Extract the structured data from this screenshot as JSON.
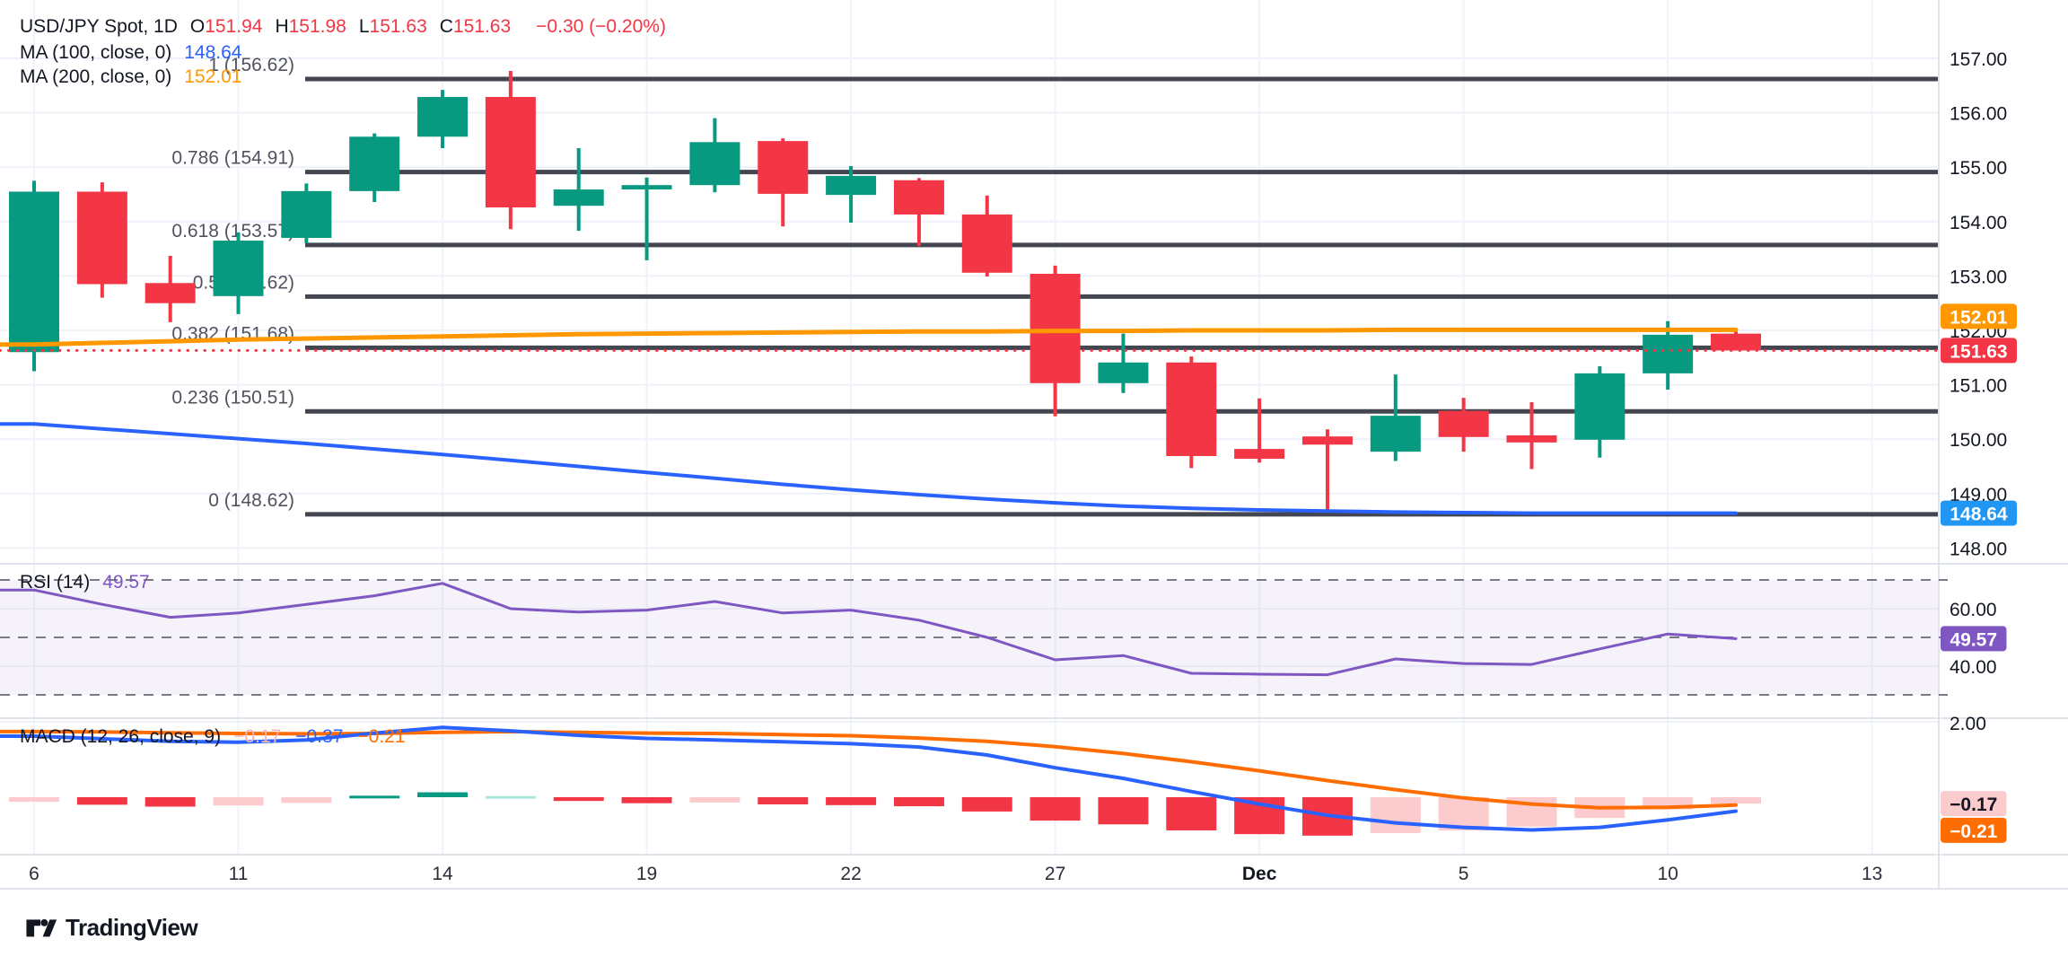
{
  "header": {
    "symbol": "USD/JPY Spot, 1D",
    "ohlc": [
      {
        "label": "O",
        "value": "151.94"
      },
      {
        "label": "H",
        "value": "151.98"
      },
      {
        "label": "L",
        "value": "151.63"
      },
      {
        "label": "C",
        "value": "151.63"
      }
    ],
    "change": "−0.30 (−0.20%)",
    "value_color": "#f23645",
    "ma_rows": [
      {
        "label": "MA (100, close, 0)",
        "value": "148.64",
        "color": "#2962ff"
      },
      {
        "label": "MA (200, close, 0)",
        "value": "152.01",
        "color": "#ff9800"
      }
    ]
  },
  "fib": {
    "levels": [
      {
        "label": "1 (156.62)",
        "price": 156.62
      },
      {
        "label": "0.786 (154.91)",
        "price": 154.91
      },
      {
        "label": "0.618 (153.57)",
        "price": 153.57
      },
      {
        "label": "0.5 (152.62)",
        "price": 152.62
      },
      {
        "label": "0.382 (151.68)",
        "price": 151.68
      },
      {
        "label": "0.236 (150.51)",
        "price": 150.51
      },
      {
        "label": "0 (148.62)",
        "price": 148.62
      }
    ]
  },
  "price_axis": {
    "ticks": [
      "157.00",
      "156.00",
      "155.00",
      "154.00",
      "153.00",
      "152.00",
      "151.00",
      "150.00",
      "149.00",
      "148.00"
    ],
    "tick_prices": [
      157,
      156,
      155,
      154,
      153,
      152,
      151,
      150,
      149,
      148
    ],
    "badges": [
      {
        "text": "152.01",
        "bg": "#ff9800",
        "fg": "#ffffff",
        "price": 152.01
      },
      {
        "text": "151.63",
        "bg": "#f23645",
        "fg": "#ffffff",
        "price": 151.63
      },
      {
        "text": "148.64",
        "bg": "#2196f3",
        "fg": "#ffffff",
        "price": 148.64
      }
    ]
  },
  "rsi_panel": {
    "label": "RSI (14)",
    "value": "49.57",
    "color": "#7e57c2",
    "ticks": [
      {
        "text": "60.00",
        "level": 60
      },
      {
        "text": "40.00",
        "level": 40
      }
    ],
    "badge": {
      "text": "49.57",
      "bg": "#7e57c2",
      "fg": "#ffffff",
      "level": 49.57
    },
    "bands": {
      "upper": 70,
      "middle": 50,
      "lower": 30
    }
  },
  "macd_panel": {
    "label": "MACD (12, 26, close, 9)",
    "values": [
      {
        "text": "−0.17",
        "color": "#f8b4ba"
      },
      {
        "text": "−0.37",
        "color": "#2962ff"
      },
      {
        "text": "−0.21",
        "color": "#ff6d00"
      }
    ],
    "tick": {
      "text": "2.00",
      "level": 2
    },
    "badges": [
      {
        "text": "−0.17",
        "bg": "#fccbcd",
        "fg": "#131722",
        "level": -0.17
      },
      {
        "text": "−0.21",
        "bg": "#ff6d00",
        "fg": "#ffffff",
        "level": -0.21
      }
    ]
  },
  "time_axis": {
    "labels": [
      {
        "text": "6",
        "k": 0,
        "bold": false
      },
      {
        "text": "11",
        "k": 3,
        "bold": false
      },
      {
        "text": "14",
        "k": 6,
        "bold": false
      },
      {
        "text": "19",
        "k": 9,
        "bold": false
      },
      {
        "text": "22",
        "k": 12,
        "bold": false
      },
      {
        "text": "27",
        "k": 15,
        "bold": false
      },
      {
        "text": "Dec",
        "k": 18,
        "bold": true
      },
      {
        "text": "5",
        "k": 21,
        "bold": false
      },
      {
        "text": "10",
        "k": 24,
        "bold": false
      },
      {
        "text": "13",
        "k": 27,
        "bold": false
      }
    ]
  },
  "watermark": {
    "text": "TradingView"
  },
  "colors": {
    "up": "#089981",
    "down": "#f23645",
    "ma100": "#2962ff",
    "ma200": "#ff9800",
    "macd_line": "#2962ff",
    "signal_line": "#ff6d00",
    "rsi_line": "#7e57c2",
    "fib_line": "#434651",
    "hist": {
      "red": "#f23645",
      "pink": "#fccbcd",
      "teal": "#089981",
      "tealLight": "#ace5dc"
    }
  },
  "chart_data": {
    "type": "candlestick",
    "title": "USD/JPY Spot",
    "timeframe": "1D",
    "ylim": [
      147.8,
      157.3
    ],
    "close_line": 151.63,
    "fib_levels": [
      156.62,
      154.91,
      153.57,
      152.62,
      151.68,
      150.51,
      148.62
    ],
    "candles": [
      {
        "date": "Nov 6",
        "o": 151.6,
        "h": 154.75,
        "l": 151.25,
        "c": 154.55
      },
      {
        "date": "Nov 7",
        "o": 154.55,
        "h": 154.72,
        "l": 152.6,
        "c": 152.85
      },
      {
        "date": "Nov 8",
        "o": 152.87,
        "h": 153.37,
        "l": 152.15,
        "c": 152.5
      },
      {
        "date": "Nov 11",
        "o": 152.63,
        "h": 153.8,
        "l": 152.3,
        "c": 153.65
      },
      {
        "date": "Nov 12",
        "o": 153.7,
        "h": 154.7,
        "l": 153.6,
        "c": 154.56
      },
      {
        "date": "Nov 13",
        "o": 154.56,
        "h": 155.62,
        "l": 154.36,
        "c": 155.56
      },
      {
        "date": "Nov 14",
        "o": 155.56,
        "h": 156.42,
        "l": 155.35,
        "c": 156.29
      },
      {
        "date": "Nov 15",
        "o": 156.29,
        "h": 156.77,
        "l": 153.86,
        "c": 154.26
      },
      {
        "date": "Nov 18",
        "o": 154.29,
        "h": 155.35,
        "l": 153.83,
        "c": 154.59
      },
      {
        "date": "Nov 19",
        "o": 154.59,
        "h": 154.81,
        "l": 153.29,
        "c": 154.67
      },
      {
        "date": "Nov 20",
        "o": 154.67,
        "h": 155.9,
        "l": 154.54,
        "c": 155.46
      },
      {
        "date": "Nov 21",
        "o": 155.48,
        "h": 155.53,
        "l": 153.91,
        "c": 154.51
      },
      {
        "date": "Nov 22",
        "o": 154.49,
        "h": 155.02,
        "l": 153.98,
        "c": 154.84
      },
      {
        "date": "Nov 25",
        "o": 154.76,
        "h": 154.8,
        "l": 153.55,
        "c": 154.13
      },
      {
        "date": "Nov 26",
        "o": 154.13,
        "h": 154.48,
        "l": 152.99,
        "c": 153.06
      },
      {
        "date": "Nov 27",
        "o": 153.04,
        "h": 153.19,
        "l": 150.42,
        "c": 151.03
      },
      {
        "date": "Nov 28",
        "o": 151.03,
        "h": 151.94,
        "l": 150.85,
        "c": 151.41
      },
      {
        "date": "Nov 29",
        "o": 151.41,
        "h": 151.52,
        "l": 149.47,
        "c": 149.69
      },
      {
        "date": "Dec 2",
        "o": 149.82,
        "h": 150.75,
        "l": 149.57,
        "c": 149.64
      },
      {
        "date": "Dec 3",
        "o": 150.05,
        "h": 150.18,
        "l": 148.65,
        "c": 149.9
      },
      {
        "date": "Dec 4",
        "o": 149.77,
        "h": 151.19,
        "l": 149.6,
        "c": 150.43
      },
      {
        "date": "Dec 5",
        "o": 150.52,
        "h": 150.76,
        "l": 149.77,
        "c": 150.04
      },
      {
        "date": "Dec 6",
        "o": 150.07,
        "h": 150.68,
        "l": 149.45,
        "c": 149.94
      },
      {
        "date": "Dec 9",
        "o": 149.99,
        "h": 151.34,
        "l": 149.66,
        "c": 151.21
      },
      {
        "date": "Dec 10",
        "o": 151.21,
        "h": 152.17,
        "l": 150.91,
        "c": 151.92
      },
      {
        "date": "Dec 11",
        "o": 151.94,
        "h": 151.98,
        "l": 151.63,
        "c": 151.63
      }
    ],
    "ma100": [
      150.28,
      150.19,
      150.1,
      150.01,
      149.92,
      149.82,
      149.72,
      149.61,
      149.5,
      149.39,
      149.28,
      149.17,
      149.07,
      148.98,
      148.9,
      148.83,
      148.77,
      148.73,
      148.7,
      148.68,
      148.66,
      148.65,
      148.64,
      148.64,
      148.64,
      148.64
    ],
    "ma200": [
      151.74,
      151.77,
      151.8,
      151.83,
      151.85,
      151.87,
      151.89,
      151.91,
      151.93,
      151.94,
      151.95,
      151.96,
      151.97,
      151.98,
      151.98,
      151.99,
      151.99,
      152.0,
      152.0,
      152.0,
      152.01,
      152.01,
      152.01,
      152.01,
      152.01,
      152.01
    ],
    "rsi": {
      "period": 14,
      "ylim": [
        20,
        80
      ],
      "values": [
        66.5,
        61.5,
        57.0,
        58.5,
        61.5,
        64.5,
        68.8,
        60.0,
        58.8,
        59.5,
        62.5,
        58.5,
        59.5,
        56.0,
        50.0,
        42.2,
        43.7,
        37.5,
        37.2,
        37.0,
        42.5,
        40.9,
        40.6,
        46.0,
        51.2,
        49.57
      ]
    },
    "macd": {
      "params": [
        12,
        26,
        9
      ],
      "macd": [
        1.62,
        1.55,
        1.48,
        1.46,
        1.52,
        1.7,
        1.85,
        1.76,
        1.64,
        1.56,
        1.52,
        1.47,
        1.42,
        1.33,
        1.12,
        0.78,
        0.5,
        0.15,
        -0.18,
        -0.48,
        -0.68,
        -0.8,
        -0.87,
        -0.8,
        -0.6,
        -0.37
      ],
      "signal": [
        1.74,
        1.73,
        1.71,
        1.69,
        1.68,
        1.69,
        1.72,
        1.74,
        1.72,
        1.7,
        1.69,
        1.66,
        1.63,
        1.57,
        1.48,
        1.34,
        1.16,
        0.94,
        0.7,
        0.44,
        0.2,
        -0.02,
        -0.18,
        -0.28,
        -0.27,
        -0.21
      ],
      "hist": [
        -0.12,
        -0.2,
        -0.25,
        -0.22,
        -0.15,
        0.04,
        0.13,
        0.03,
        -0.1,
        -0.16,
        -0.14,
        -0.19,
        -0.21,
        -0.24,
        -0.38,
        -0.62,
        -0.72,
        -0.88,
        -0.98,
        -1.02,
        -0.95,
        -0.88,
        -0.78,
        -0.55,
        -0.32,
        -0.17
      ],
      "hist_colors": [
        "pink",
        "red",
        "red",
        "pink",
        "pink",
        "teal",
        "teal",
        "tealLight",
        "red",
        "red",
        "pink",
        "red",
        "red",
        "red",
        "red",
        "red",
        "red",
        "red",
        "red",
        "red",
        "pink",
        "pink",
        "pink",
        "pink",
        "pink",
        "pink"
      ]
    }
  }
}
